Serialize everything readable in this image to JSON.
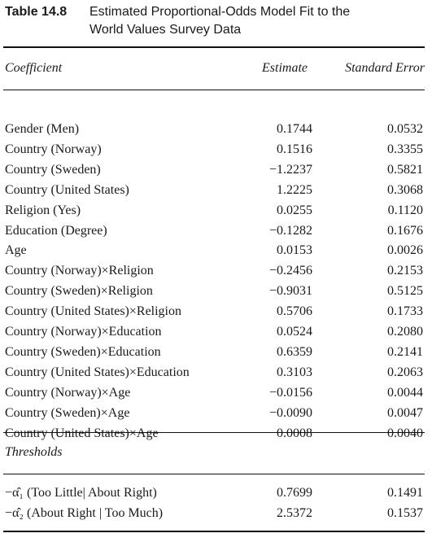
{
  "caption": {
    "number": "Table 14.8",
    "title_line1": "Estimated Proportional-Odds Model Fit to the",
    "title_line2": "World Values Survey Data"
  },
  "header": {
    "coefficient": "Coefficient",
    "estimate": "Estimate",
    "standard_error": "Standard Error"
  },
  "rows": [
    {
      "name": "Gender (Men)",
      "estimate": "0.1744",
      "se": "0.0532"
    },
    {
      "name": "Country (Norway)",
      "estimate": "0.1516",
      "se": "0.3355"
    },
    {
      "name": "Country (Sweden)",
      "estimate": "−1.2237",
      "se": "0.5821"
    },
    {
      "name": "Country (United States)",
      "estimate": "1.2225",
      "se": "0.3068"
    },
    {
      "name": "Religion (Yes)",
      "estimate": "0.0255",
      "se": "0.1120"
    },
    {
      "name": "Education (Degree)",
      "estimate": "−0.1282",
      "se": "0.1676"
    },
    {
      "name": "Age",
      "estimate": "0.0153",
      "se": "0.0026"
    },
    {
      "name": "Country (Norway)×Religion",
      "estimate": "−0.2456",
      "se": "0.2153"
    },
    {
      "name": "Country (Sweden)×Religion",
      "estimate": "−0.9031",
      "se": "0.5125"
    },
    {
      "name": "Country (United States)×Religion",
      "estimate": "0.5706",
      "se": "0.1733"
    },
    {
      "name": "Country (Norway)×Education",
      "estimate": "0.0524",
      "se": "0.2080"
    },
    {
      "name": "Country (Sweden)×Education",
      "estimate": "0.6359",
      "se": "0.2141"
    },
    {
      "name": "Country (United States)×Education",
      "estimate": "0.3103",
      "se": "0.2063"
    },
    {
      "name": "Country (Norway)×Age",
      "estimate": "−0.0156",
      "se": "0.0044"
    },
    {
      "name": "Country (Sweden)×Age",
      "estimate": "−0.0090",
      "se": "0.0047"
    },
    {
      "name": "Country (United States)×Age",
      "estimate": "0.0008",
      "se": "0.0040"
    }
  ],
  "thresholds": {
    "label": "Thresholds",
    "rows": [
      {
        "name": "−α̂₁ (Too Little| About Right)",
        "estimate": "0.7699",
        "se": "0.1491"
      },
      {
        "name": "−α̂₂ (About Right | Too Much)",
        "estimate": "2.5372",
        "se": "0.1537"
      }
    ]
  }
}
